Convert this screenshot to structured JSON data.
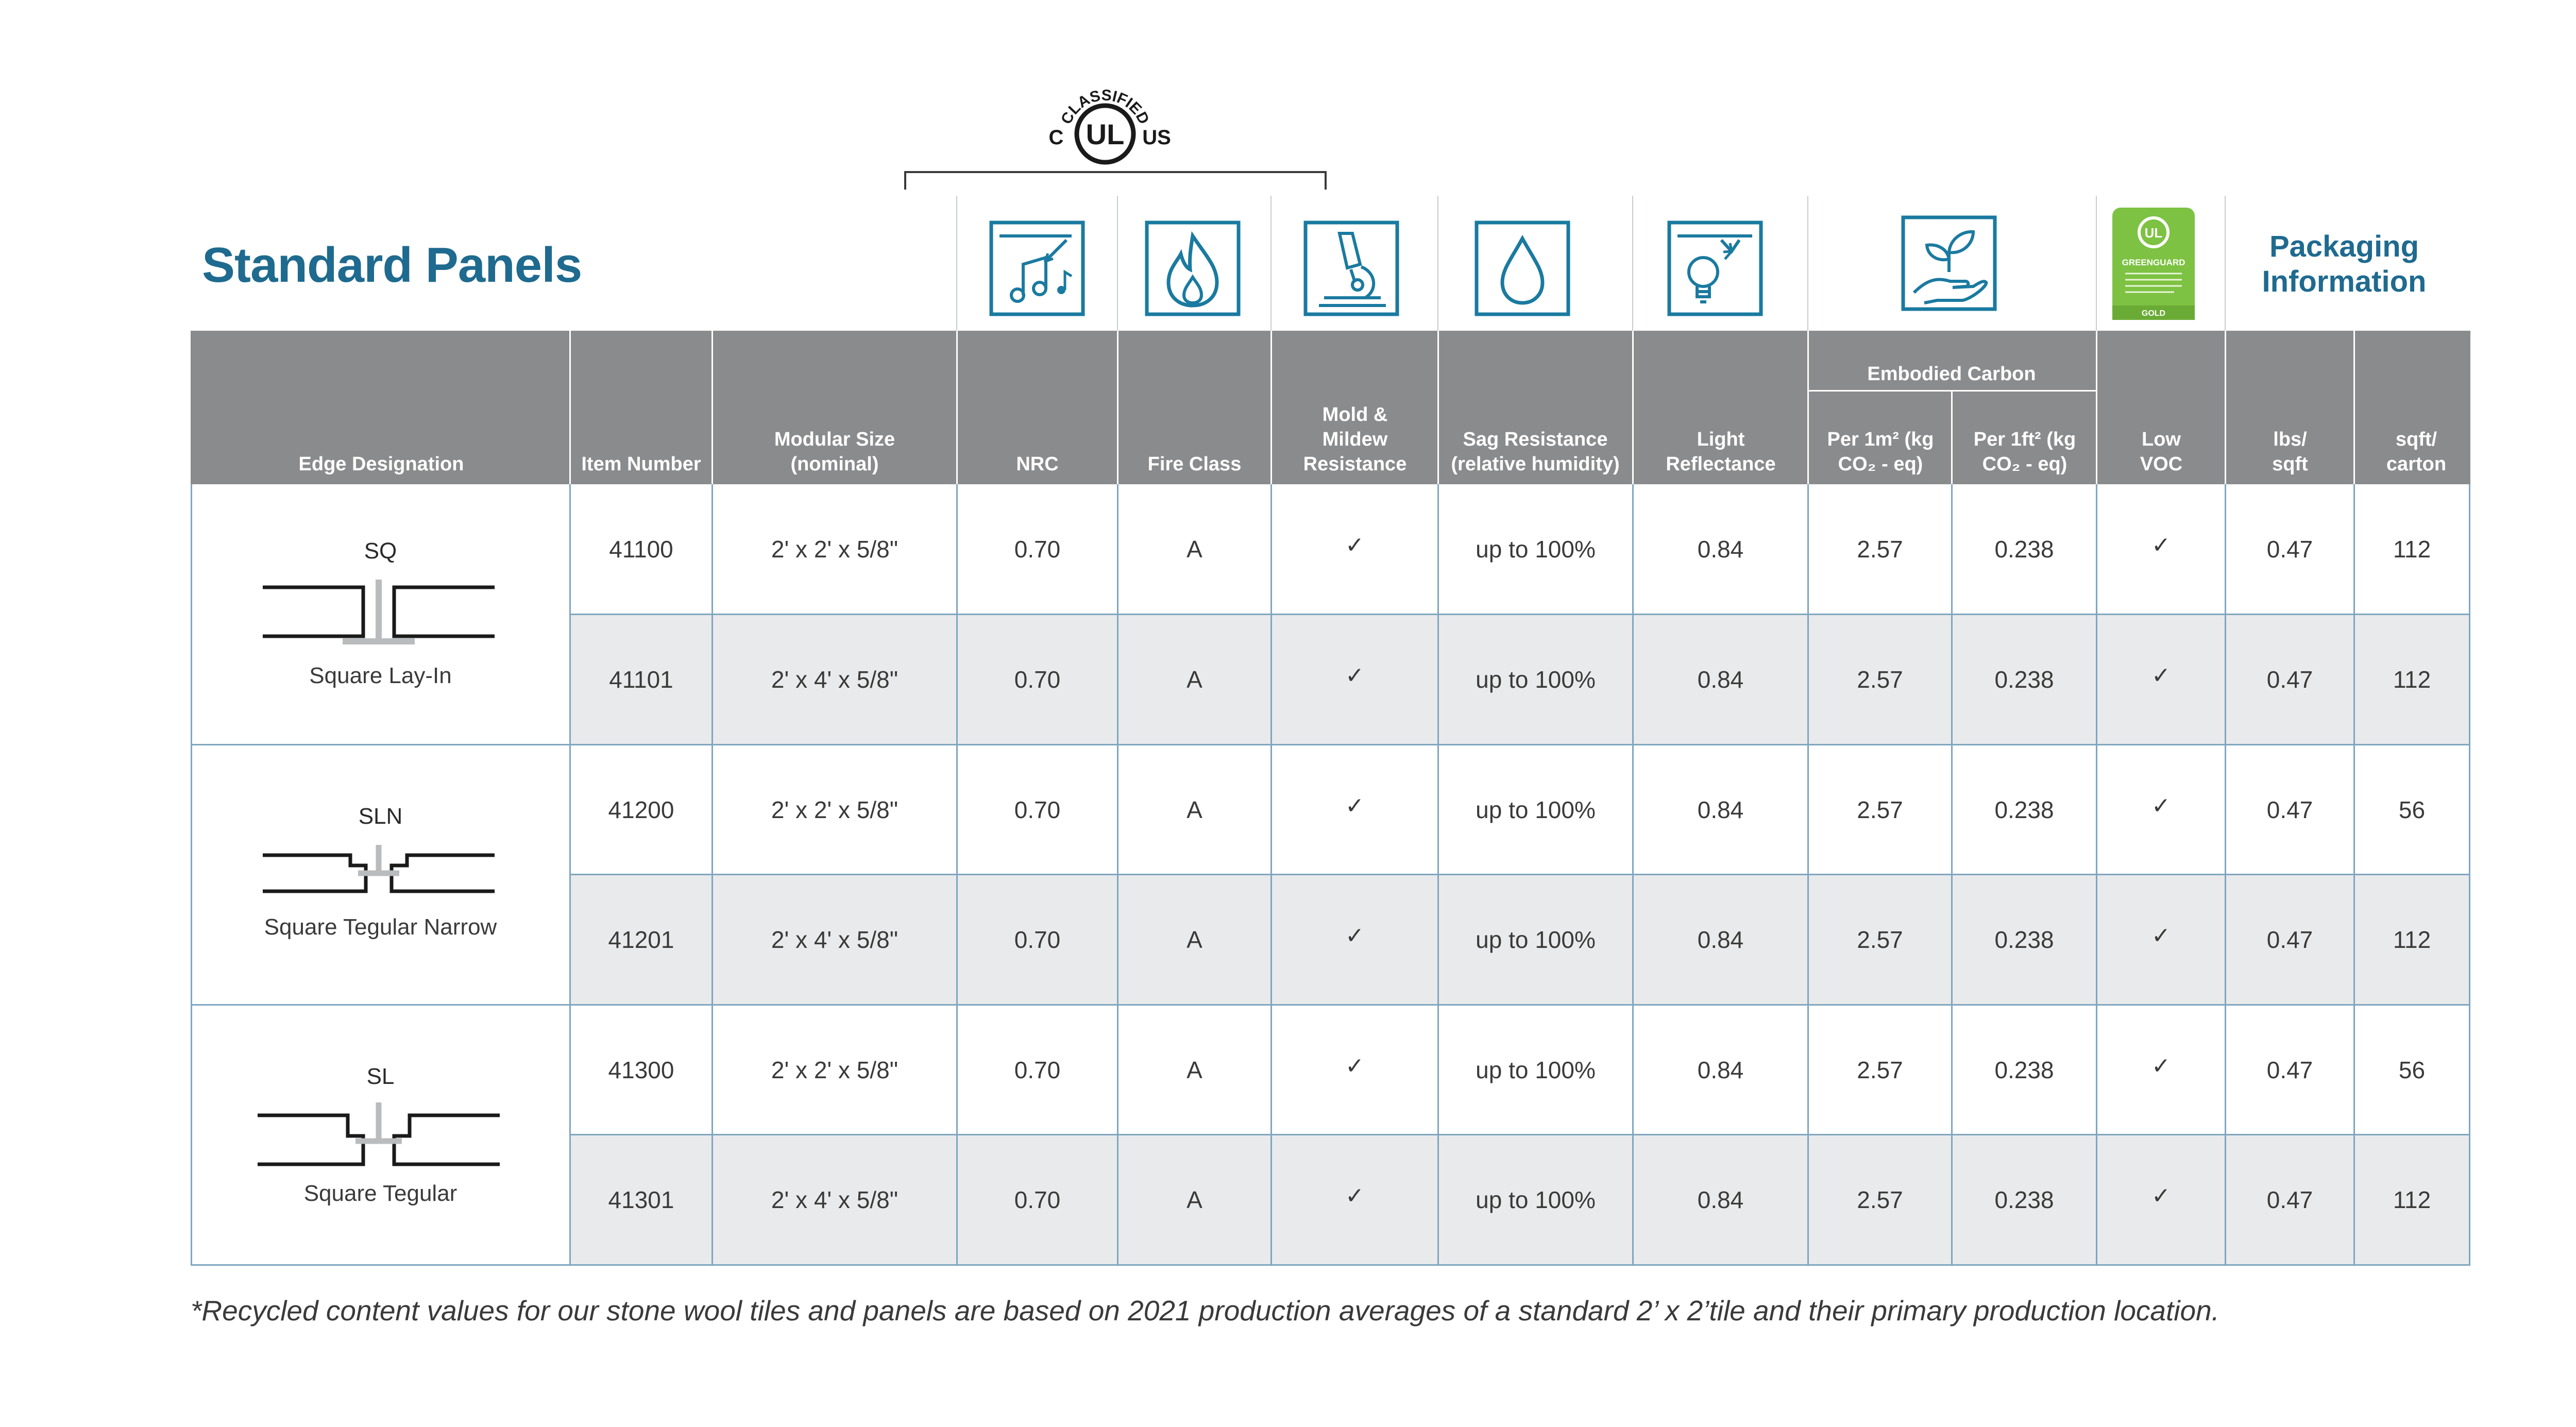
{
  "title": "Standard Panels",
  "packaging_title": "Packaging Information",
  "certification": {
    "ul_top": "CLASSIFIED",
    "ul_left": "C",
    "ul_center": "UL",
    "ul_right": "US",
    "greenguard_lines": [
      "GREENGUARD",
      "GOLD"
    ]
  },
  "icons": {
    "nrc": "music-notes-icon",
    "fire": "flame-icon",
    "mold": "microscope-icon",
    "sag": "water-drop-icon",
    "light": "light-bulb-icon",
    "carbon": "leaf-hand-icon",
    "voc": "greenguard-badge-icon"
  },
  "colors": {
    "brand_blue": "#1f6a8f",
    "header_gray": "#8a8b8d",
    "icon_blue": "#1a7aa0",
    "row_alt": "#e9eaeb",
    "greenguard_green": "#7dc242"
  },
  "header": {
    "embodied_carbon": "Embodied Carbon",
    "edge": "Edge Designation",
    "item_number": "Item Number",
    "modular_size": "Modular Size (nominal)",
    "nrc": "NRC",
    "fire_class": "Fire Class",
    "mold": "Mold & Mildew Resistance",
    "sag": "Sag Resistance (relative humidity)",
    "light": "Light Reflectance",
    "per_m2": "Per 1m² (kg CO₂ - eq)",
    "per_ft2": "Per 1ft² (kg CO₂ - eq)",
    "low_voc": "Low VOC",
    "lbs_sqft": "lbs/ sqft",
    "sqft_carton": "sqft/ carton"
  },
  "edges": [
    {
      "code": "SQ",
      "name": "Square Lay-In"
    },
    {
      "code": "SLN",
      "name": "Square Tegular Narrow"
    },
    {
      "code": "SL",
      "name": "Square Tegular"
    }
  ],
  "rows": [
    {
      "item": "41100",
      "size": "2' x 2' x 5/8\"",
      "nrc": "0.70",
      "fire": "A",
      "mold": "✓",
      "sag": "up to 100%",
      "light": "0.84",
      "m2": "2.57",
      "ft2": "0.238",
      "voc": "✓",
      "lbs": "0.47",
      "carton": "112"
    },
    {
      "item": "41101",
      "size": "2' x 4' x 5/8\"",
      "nrc": "0.70",
      "fire": "A",
      "mold": "✓",
      "sag": "up to 100%",
      "light": "0.84",
      "m2": "2.57",
      "ft2": "0.238",
      "voc": "✓",
      "lbs": "0.47",
      "carton": "112"
    },
    {
      "item": "41200",
      "size": "2' x 2' x 5/8\"",
      "nrc": "0.70",
      "fire": "A",
      "mold": "✓",
      "sag": "up to 100%",
      "light": "0.84",
      "m2": "2.57",
      "ft2": "0.238",
      "voc": "✓",
      "lbs": "0.47",
      "carton": "56"
    },
    {
      "item": "41201",
      "size": "2' x 4' x 5/8\"",
      "nrc": "0.70",
      "fire": "A",
      "mold": "✓",
      "sag": "up to 100%",
      "light": "0.84",
      "m2": "2.57",
      "ft2": "0.238",
      "voc": "✓",
      "lbs": "0.47",
      "carton": "112"
    },
    {
      "item": "41300",
      "size": "2' x 2' x 5/8\"",
      "nrc": "0.70",
      "fire": "A",
      "mold": "✓",
      "sag": "up to 100%",
      "light": "0.84",
      "m2": "2.57",
      "ft2": "0.238",
      "voc": "✓",
      "lbs": "0.47",
      "carton": "56"
    },
    {
      "item": "41301",
      "size": "2' x 4' x 5/8\"",
      "nrc": "0.70",
      "fire": "A",
      "mold": "✓",
      "sag": "up to 100%",
      "light": "0.84",
      "m2": "2.57",
      "ft2": "0.238",
      "voc": "✓",
      "lbs": "0.47",
      "carton": "112"
    }
  ],
  "footnote": "*Recycled content values for our stone wool tiles and panels are based on 2021 production averages of a standard 2’ x 2’tile and their primary production location."
}
